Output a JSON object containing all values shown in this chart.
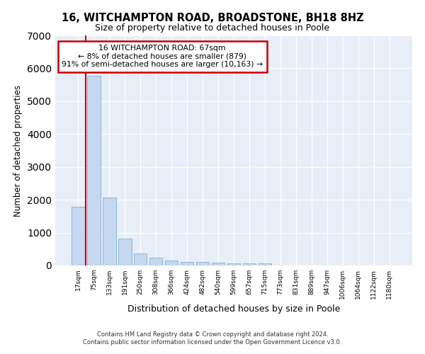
{
  "title1": "16, WITCHAMPTON ROAD, BROADSTONE, BH18 8HZ",
  "title2": "Size of property relative to detached houses in Poole",
  "xlabel": "Distribution of detached houses by size in Poole",
  "ylabel": "Number of detached properties",
  "footer_line1": "Contains HM Land Registry data © Crown copyright and database right 2024.",
  "footer_line2": "Contains public sector information licensed under the Open Government Licence v3.0.",
  "annotation_line1": "16 WITCHAMPTON ROAD: 67sqm",
  "annotation_line2": "← 8% of detached houses are smaller (879)",
  "annotation_line3": "91% of semi-detached houses are larger (10,163) →",
  "bar_labels": [
    "17sqm",
    "75sqm",
    "133sqm",
    "191sqm",
    "250sqm",
    "308sqm",
    "366sqm",
    "424sqm",
    "482sqm",
    "540sqm",
    "599sqm",
    "657sqm",
    "715sqm",
    "773sqm",
    "831sqm",
    "889sqm",
    "947sqm",
    "1006sqm",
    "1064sqm",
    "1122sqm",
    "1180sqm"
  ],
  "bar_values": [
    1790,
    5780,
    2060,
    820,
    370,
    235,
    150,
    110,
    100,
    95,
    75,
    70,
    70,
    0,
    0,
    0,
    0,
    0,
    0,
    0,
    0
  ],
  "bar_color": "#c5d8f0",
  "bar_edge_color": "#7bafd4",
  "property_line_x": 0.5,
  "property_line_color": "#cc0000",
  "annotation_box_color": "#cc0000",
  "plot_bg_color": "#e8eef8",
  "ylim": [
    0,
    7000
  ],
  "yticks": [
    0,
    1000,
    2000,
    3000,
    4000,
    5000,
    6000,
    7000
  ]
}
